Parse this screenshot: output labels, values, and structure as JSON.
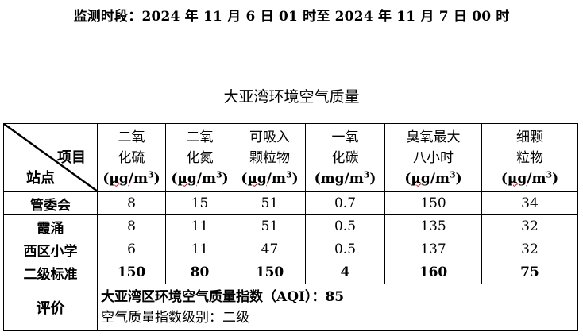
{
  "period": "监测时段：2024 年 11 月 6 日 01 时至 2024 年 11 月 7 日 00 时",
  "title": "大亚湾环境空气质量",
  "table": {
    "corner_item": "项目",
    "corner_site": "站点",
    "columns": [
      {
        "line1": "二氧",
        "line2": "化硫",
        "unit_pre": "(",
        "unit_mu": "µg",
        "unit_rest": "/m",
        "unit_sup": "3",
        "unit_post": ")"
      },
      {
        "line1": "二氧",
        "line2": "化氮",
        "unit_pre": "(",
        "unit_mu": "µg",
        "unit_rest": "/m",
        "unit_sup": "3",
        "unit_post": ")"
      },
      {
        "line1": "可吸入",
        "line2": "颗粒物",
        "unit_pre": "(",
        "unit_mu": "µg",
        "unit_rest": "/m",
        "unit_sup": "3",
        "unit_post": ")"
      },
      {
        "line1": "一氧",
        "line2": "化碳",
        "unit_pre": "(",
        "unit_mu": "mg",
        "unit_rest": "/m",
        "unit_sup": "3",
        "unit_post": ")"
      },
      {
        "line1": "臭氧最大",
        "line2": "八小时",
        "unit_pre": "(",
        "unit_mu": "µg",
        "unit_rest": "/m",
        "unit_sup": "3",
        "unit_post": ")"
      },
      {
        "line1": "细颗",
        "line2": "粒物",
        "unit_pre": "(",
        "unit_mu": "µg",
        "unit_rest": "/m",
        "unit_sup": "3",
        "unit_post": ")"
      }
    ],
    "rows": [
      {
        "site": "管委会",
        "values": [
          "8",
          "15",
          "51",
          "0.7",
          "150",
          "34"
        ]
      },
      {
        "site": "霞涌",
        "values": [
          "8",
          "11",
          "51",
          "0.5",
          "135",
          "32"
        ]
      },
      {
        "site": "西区小学",
        "values": [
          "6",
          "11",
          "47",
          "0.5",
          "137",
          "32"
        ]
      }
    ],
    "standard": {
      "label": "二级标准",
      "values": [
        "150",
        "80",
        "150",
        "4",
        "160",
        "75"
      ]
    },
    "evaluation": {
      "label": "评价",
      "aqi_line": "大亚湾区环境空气质量指数（AQI）：85",
      "level_line": "空气质量指数级别：二级"
    }
  }
}
